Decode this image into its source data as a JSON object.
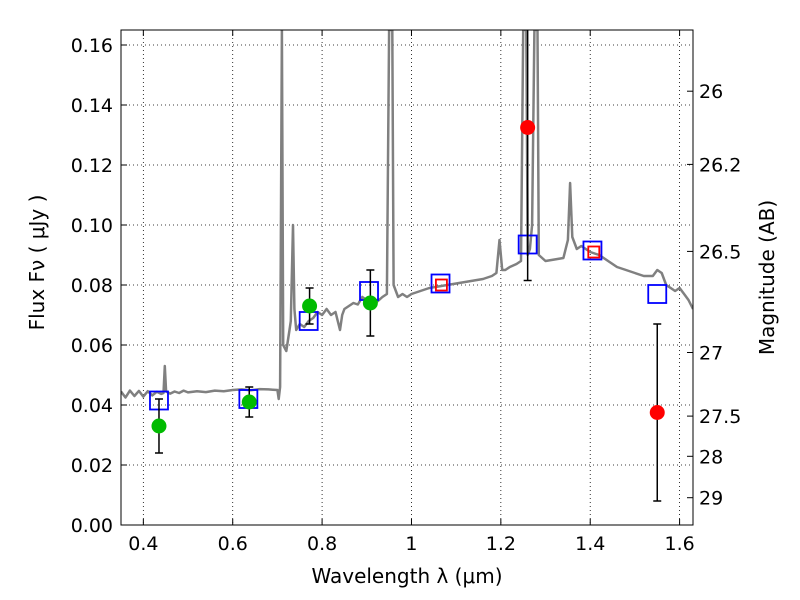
{
  "chart_data": {
    "type": "scatter",
    "xlabel": "Wavelength  λ (μm)",
    "ylabel": "Flux  Fν ( μJy )",
    "y2label": "Magnitude (AB)",
    "xlim": [
      0.35,
      1.63
    ],
    "ylim": [
      0.0,
      0.165
    ],
    "grid": true,
    "x_ticks": [
      0.4,
      0.6,
      0.8,
      1.0,
      1.2,
      1.4,
      1.6
    ],
    "x_tick_labels": [
      "0.4",
      "0.6",
      "0.8",
      "1",
      "1.2",
      "1.4",
      "1.6"
    ],
    "y_ticks": [
      0.0,
      0.02,
      0.04,
      0.06,
      0.08,
      0.1,
      0.12,
      0.14,
      0.16
    ],
    "y_tick_labels": [
      "0.00",
      "0.02",
      "0.04",
      "0.06",
      "0.08",
      "0.10",
      "0.12",
      "0.14",
      "0.16"
    ],
    "y2_ticks": [
      {
        "label": "26",
        "flux": 0.1446
      },
      {
        "label": "26.2",
        "flux": 0.1202
      },
      {
        "label": "26.5",
        "flux": 0.0912
      },
      {
        "label": "27",
        "flux": 0.0575
      },
      {
        "label": "27.5",
        "flux": 0.0363
      },
      {
        "label": "28",
        "flux": 0.0229
      },
      {
        "label": "29",
        "flux": 0.0091
      }
    ],
    "series": [
      {
        "kind": "line",
        "color": "#808080",
        "points": [
          [
            0.35,
            0.0445
          ],
          [
            0.36,
            0.0425
          ],
          [
            0.37,
            0.0448
          ],
          [
            0.38,
            0.043
          ],
          [
            0.39,
            0.0447
          ],
          [
            0.4,
            0.0428
          ],
          [
            0.41,
            0.0446
          ],
          [
            0.42,
            0.0432
          ],
          [
            0.43,
            0.0444
          ],
          [
            0.44,
            0.0437
          ],
          [
            0.445,
            0.044
          ],
          [
            0.448,
            0.053
          ],
          [
            0.451,
            0.0445
          ],
          [
            0.46,
            0.0438
          ],
          [
            0.47,
            0.0445
          ],
          [
            0.48,
            0.044
          ],
          [
            0.49,
            0.0448
          ],
          [
            0.5,
            0.0442
          ],
          [
            0.52,
            0.0446
          ],
          [
            0.54,
            0.0443
          ],
          [
            0.56,
            0.0448
          ],
          [
            0.58,
            0.0446
          ],
          [
            0.6,
            0.045
          ],
          [
            0.62,
            0.0452
          ],
          [
            0.64,
            0.0449
          ],
          [
            0.66,
            0.0453
          ],
          [
            0.68,
            0.0452
          ],
          [
            0.69,
            0.0451
          ],
          [
            0.7,
            0.045
          ],
          [
            0.703,
            0.042
          ],
          [
            0.706,
            0.046
          ],
          [
            0.71,
            0.165
          ],
          [
            0.713,
            0.06
          ],
          [
            0.72,
            0.058
          ],
          [
            0.727,
            0.065
          ],
          [
            0.73,
            0.068
          ],
          [
            0.735,
            0.1
          ],
          [
            0.738,
            0.072
          ],
          [
            0.742,
            0.065
          ],
          [
            0.75,
            0.067
          ],
          [
            0.76,
            0.066
          ],
          [
            0.77,
            0.068
          ],
          [
            0.78,
            0.069
          ],
          [
            0.79,
            0.071
          ],
          [
            0.8,
            0.07
          ],
          [
            0.81,
            0.072
          ],
          [
            0.82,
            0.07
          ],
          [
            0.83,
            0.071
          ],
          [
            0.84,
            0.065
          ],
          [
            0.845,
            0.07
          ],
          [
            0.85,
            0.072
          ],
          [
            0.86,
            0.073
          ],
          [
            0.87,
            0.074
          ],
          [
            0.88,
            0.0735
          ],
          [
            0.89,
            0.076
          ],
          [
            0.9,
            0.075
          ],
          [
            0.91,
            0.076
          ],
          [
            0.92,
            0.074
          ],
          [
            0.935,
            0.076
          ],
          [
            0.945,
            0.077
          ],
          [
            0.95,
            0.165
          ],
          [
            0.957,
            0.165
          ],
          [
            0.96,
            0.08
          ],
          [
            0.97,
            0.076
          ],
          [
            0.98,
            0.077
          ],
          [
            0.99,
            0.076
          ],
          [
            1.0,
            0.077
          ],
          [
            1.02,
            0.078
          ],
          [
            1.04,
            0.079
          ],
          [
            1.06,
            0.0795
          ],
          [
            1.08,
            0.08
          ],
          [
            1.1,
            0.0805
          ],
          [
            1.12,
            0.081
          ],
          [
            1.14,
            0.0815
          ],
          [
            1.16,
            0.082
          ],
          [
            1.18,
            0.083
          ],
          [
            1.19,
            0.084
          ],
          [
            1.197,
            0.095
          ],
          [
            1.203,
            0.085
          ],
          [
            1.21,
            0.085
          ],
          [
            1.22,
            0.086
          ],
          [
            1.235,
            0.087
          ],
          [
            1.245,
            0.088
          ],
          [
            1.25,
            0.165
          ],
          [
            1.257,
            0.165
          ],
          [
            1.26,
            0.09
          ],
          [
            1.265,
            0.092
          ],
          [
            1.27,
            0.1
          ],
          [
            1.275,
            0.165
          ],
          [
            1.282,
            0.165
          ],
          [
            1.285,
            0.09
          ],
          [
            1.3,
            0.088
          ],
          [
            1.32,
            0.0885
          ],
          [
            1.34,
            0.089
          ],
          [
            1.35,
            0.095
          ],
          [
            1.355,
            0.114
          ],
          [
            1.36,
            0.096
          ],
          [
            1.37,
            0.092
          ],
          [
            1.38,
            0.093
          ],
          [
            1.39,
            0.092
          ],
          [
            1.4,
            0.091
          ],
          [
            1.42,
            0.09
          ],
          [
            1.44,
            0.088
          ],
          [
            1.46,
            0.086
          ],
          [
            1.48,
            0.085
          ],
          [
            1.5,
            0.084
          ],
          [
            1.52,
            0.083
          ],
          [
            1.54,
            0.083
          ],
          [
            1.55,
            0.085
          ],
          [
            1.56,
            0.084
          ],
          [
            1.57,
            0.08
          ],
          [
            1.58,
            0.079
          ],
          [
            1.59,
            0.078
          ],
          [
            1.6,
            0.079
          ],
          [
            1.61,
            0.077
          ],
          [
            1.62,
            0.075
          ],
          [
            1.63,
            0.072
          ]
        ]
      },
      {
        "kind": "squares",
        "color": "#0000ff",
        "points": [
          [
            0.435,
            0.0415
          ],
          [
            0.635,
            0.042
          ],
          [
            0.77,
            0.068
          ],
          [
            0.905,
            0.078
          ],
          [
            1.065,
            0.0805
          ],
          [
            1.26,
            0.0935
          ],
          [
            1.405,
            0.0915
          ],
          [
            1.55,
            0.077
          ]
        ]
      },
      {
        "kind": "squares-small",
        "color": "#ff0000",
        "points": [
          [
            1.067,
            0.08
          ],
          [
            1.408,
            0.091
          ]
        ]
      },
      {
        "kind": "errorbar",
        "color": "#00bb00",
        "points": [
          {
            "x": 0.435,
            "y": 0.033,
            "err": 0.009
          },
          {
            "x": 0.637,
            "y": 0.041,
            "err": 0.005
          },
          {
            "x": 0.772,
            "y": 0.073,
            "err": 0.006
          },
          {
            "x": 0.908,
            "y": 0.074,
            "err": 0.011
          }
        ]
      },
      {
        "kind": "errorbar",
        "color": "#ff0000",
        "points": [
          {
            "x": 1.26,
            "y": 0.1325,
            "err": 0.051,
            "err_up": 0.033
          },
          {
            "x": 1.55,
            "y": 0.0375,
            "err": 0.0295
          }
        ]
      }
    ]
  }
}
